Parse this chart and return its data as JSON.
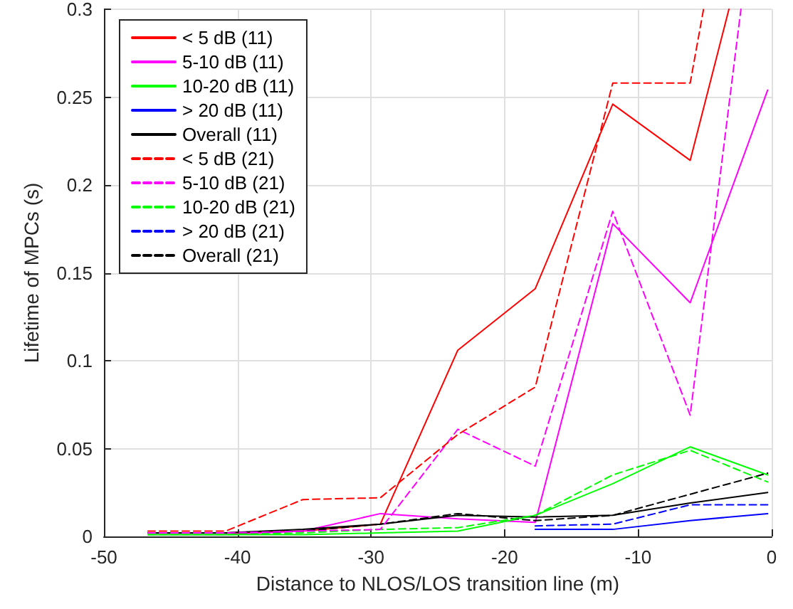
{
  "chart_data": {
    "type": "line",
    "xlabel": "Distance to NLOS/LOS transition line (m)",
    "ylabel": "Lifetime of MPCs (s)",
    "x": [
      -46.7,
      -40.9,
      -35.1,
      -29.3,
      -23.5,
      -17.7,
      -11.9,
      -6.1,
      -0.3
    ],
    "xlim": [
      -50,
      0
    ],
    "xticks": [
      -50,
      -40,
      -30,
      -20,
      -10,
      0
    ],
    "ylim": [
      0,
      0.3
    ],
    "yticks": [
      0,
      0.05,
      0.1,
      0.15,
      0.2,
      0.25,
      0.3
    ],
    "grid": true,
    "legend": "top left",
    "marker": "none",
    "series": [
      {
        "name": "< 5 dB (11)",
        "color": "#ff0000",
        "line_style": "solid",
        "x": [
          -46.7,
          -40.9,
          -35.1,
          -29.3,
          -23.5,
          -17.7,
          -11.9,
          -6.1,
          -3.2
        ],
        "values": [
          0.002,
          0.002,
          0.003,
          0.007,
          0.106,
          0.141,
          0.246,
          0.214,
          0.3
        ]
      },
      {
        "name": "5-10 dB (11)",
        "color": "#ff00ff",
        "line_style": "solid",
        "values": [
          0.001,
          0.001,
          0.003,
          0.013,
          0.01,
          0.008,
          0.178,
          0.133,
          0.254
        ]
      },
      {
        "name": "10-20 dB (11)",
        "color": "#00ff00",
        "line_style": "solid",
        "values": [
          0.001,
          0.001,
          0.001,
          0.002,
          0.003,
          0.012,
          0.03,
          0.051,
          0.035
        ]
      },
      {
        "name": "> 20 dB (11)",
        "color": "#0000ff",
        "line_style": "solid",
        "values": [
          null,
          null,
          null,
          null,
          null,
          0.004,
          0.004,
          0.009,
          0.013
        ]
      },
      {
        "name": "Overall (11)",
        "color": "#000000",
        "line_style": "solid",
        "values": [
          0.002,
          0.002,
          0.004,
          0.007,
          0.012,
          0.011,
          0.012,
          0.019,
          0.025
        ]
      },
      {
        "name": "< 5 dB (21)",
        "color": "#ff0000",
        "line_style": "dashed",
        "x": [
          -46.7,
          -40.9,
          -35.1,
          -29.3,
          -23.5,
          -17.7,
          -11.9,
          -6.1,
          -5.1
        ],
        "values": [
          0.003,
          0.003,
          0.021,
          0.022,
          0.058,
          0.085,
          0.258,
          0.258,
          0.3
        ]
      },
      {
        "name": "5-10 dB (21)",
        "color": "#ff00ff",
        "line_style": "dashed",
        "x": [
          -46.7,
          -40.9,
          -35.1,
          -29.3,
          -23.5,
          -17.7,
          -11.9,
          -6.1,
          -2.3
        ],
        "values": [
          0.002,
          0.002,
          0.003,
          0.004,
          0.061,
          0.04,
          0.185,
          0.069,
          0.3
        ]
      },
      {
        "name": "10-20 dB (21)",
        "color": "#00ff00",
        "line_style": "dashed",
        "values": [
          0.001,
          0.001,
          0.002,
          0.004,
          0.005,
          0.012,
          0.035,
          0.049,
          0.031
        ]
      },
      {
        "name": "> 20 dB (21)",
        "color": "#0000ff",
        "line_style": "dashed",
        "values": [
          null,
          null,
          null,
          null,
          null,
          0.006,
          0.007,
          0.018,
          0.018
        ]
      },
      {
        "name": "Overall (21)",
        "color": "#000000",
        "line_style": "dashed",
        "values": [
          0.002,
          0.002,
          0.003,
          0.007,
          0.013,
          0.009,
          0.012,
          0.024,
          0.036
        ]
      }
    ]
  }
}
